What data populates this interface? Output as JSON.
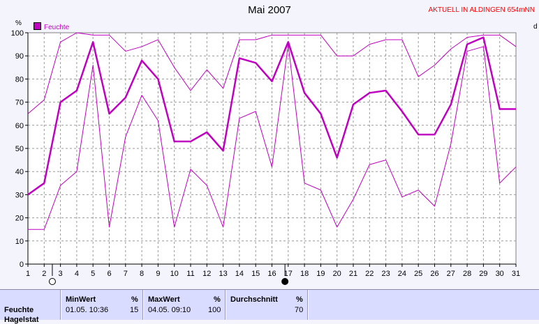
{
  "title": "Mai 2007",
  "station": "AKTUELL IN ALDINGEN 654mNN",
  "unit_left": "%",
  "unit_right": "d",
  "legend_label": "Feuchte",
  "colors": {
    "series": "#c000c0",
    "background": "#f4f4fd",
    "grid": "#999999",
    "summary_bg": "#d9dbff"
  },
  "chart_data": {
    "type": "line",
    "title": "Mai 2007",
    "x": [
      1,
      2,
      3,
      4,
      5,
      6,
      7,
      8,
      9,
      10,
      11,
      12,
      13,
      14,
      15,
      16,
      17,
      18,
      19,
      20,
      21,
      22,
      23,
      24,
      25,
      26,
      27,
      28,
      29,
      30,
      31
    ],
    "xlim": [
      1,
      31
    ],
    "ylim": [
      0,
      100
    ],
    "yticks": [
      0,
      10,
      20,
      30,
      40,
      50,
      60,
      70,
      80,
      90,
      100
    ],
    "grid": true,
    "legend": "top-left",
    "series": [
      {
        "name": "Feuchte",
        "role": "mean",
        "values": [
          30,
          35,
          70,
          75,
          96,
          65,
          72,
          88,
          80,
          53,
          53,
          57,
          49,
          89,
          87,
          79,
          96,
          74,
          65,
          46,
          69,
          74,
          75,
          66,
          56,
          56,
          69,
          95,
          98,
          67,
          67
        ]
      },
      {
        "role": "max",
        "values": [
          65,
          71,
          96,
          100,
          99,
          99,
          92,
          94,
          97,
          85,
          75,
          84,
          76,
          97,
          97,
          99,
          99,
          99,
          99,
          90,
          90,
          95,
          97,
          97,
          81,
          86,
          93,
          98,
          99,
          99,
          94
        ]
      },
      {
        "role": "min",
        "values": [
          15,
          15,
          34,
          40,
          86,
          16,
          55,
          73,
          62,
          16,
          41,
          34,
          16,
          63,
          66,
          42,
          95,
          35,
          32,
          16,
          28,
          43,
          45,
          29,
          32,
          25,
          52,
          92,
          94,
          35,
          42
        ]
      }
    ],
    "markers": [
      {
        "x": 2.5,
        "symbol": "new-moon-open"
      },
      {
        "x": 16.8,
        "symbol": "full-moon-filled"
      }
    ]
  },
  "summary": {
    "row_label": "Feuchte",
    "row_label_2": "Hagelstat",
    "min": {
      "header": "MinWert",
      "unit": "%",
      "time": "01.05.  10:36",
      "value": "15"
    },
    "max": {
      "header": "MaxWert",
      "unit": "%",
      "time": "04.05.  09:10",
      "value": "100"
    },
    "avg": {
      "header": "Durchschnitt",
      "unit": "%",
      "value": "70"
    }
  }
}
